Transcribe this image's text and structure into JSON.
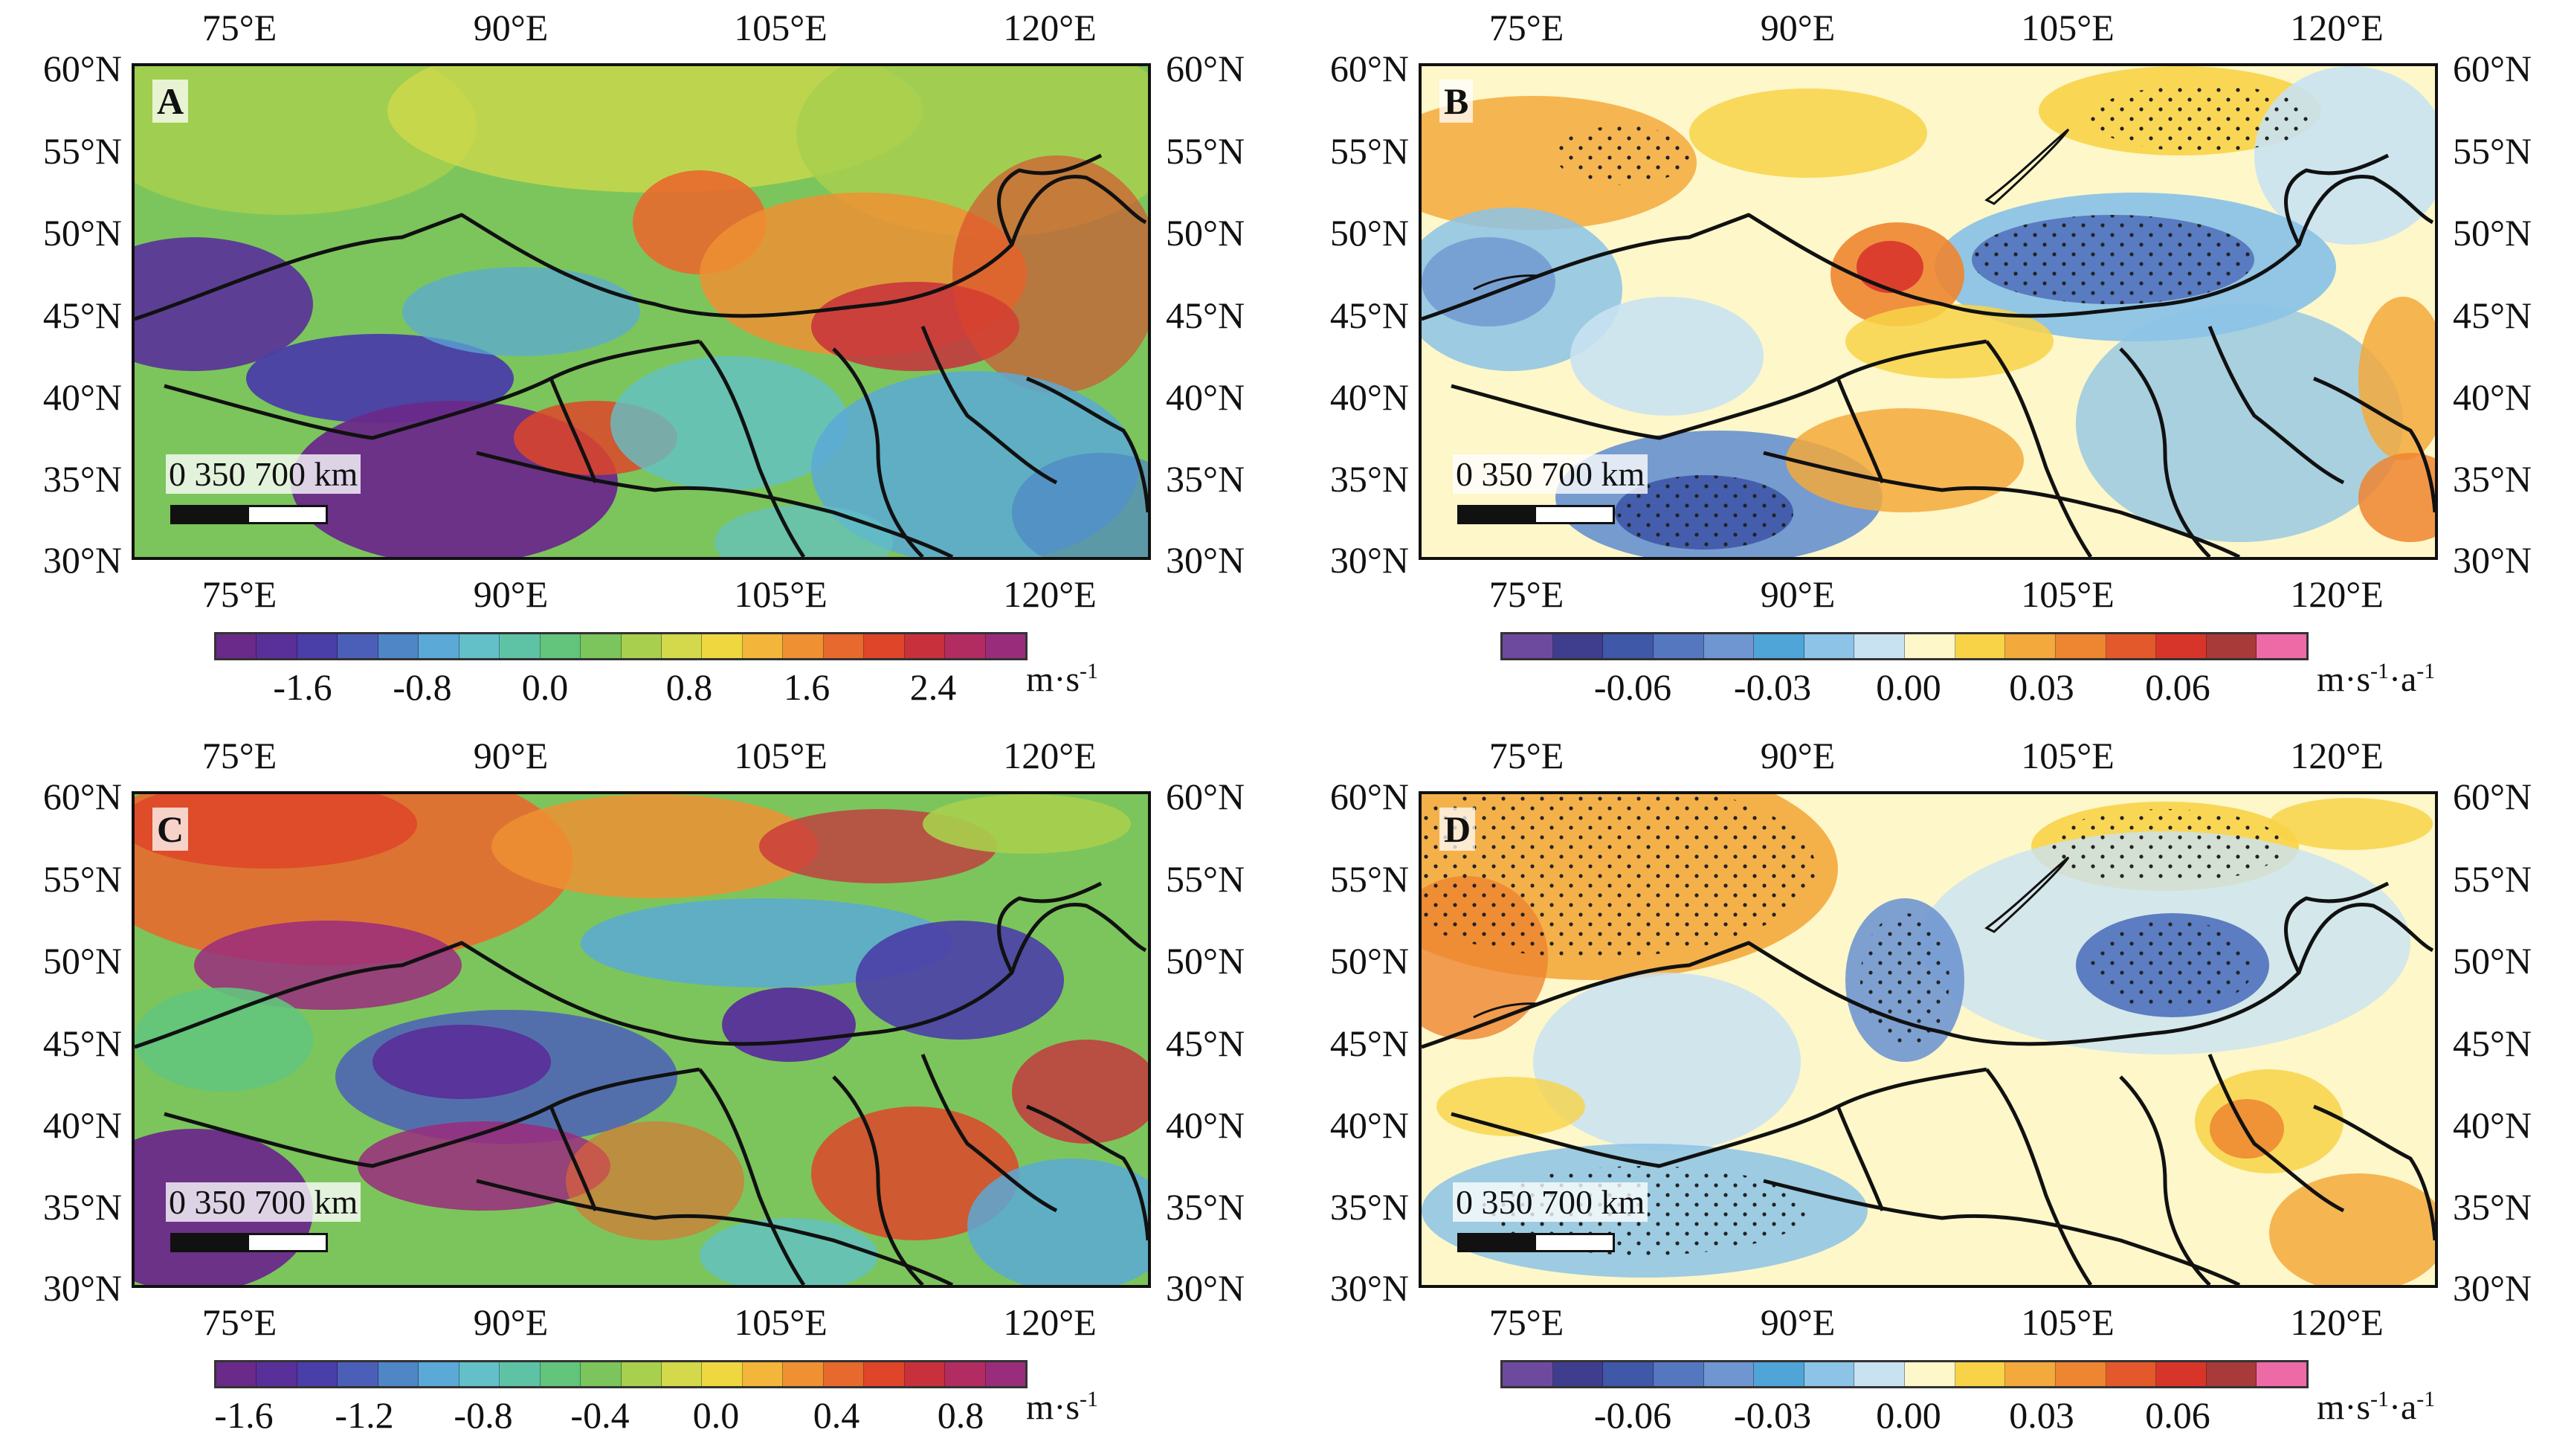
{
  "panels": [
    {
      "letter": "A",
      "scale_label": "0  350    700 km"
    },
    {
      "letter": "B",
      "scale_label": "0  350    700 km"
    },
    {
      "letter": "C",
      "scale_label": "0  350    700 km"
    },
    {
      "letter": "D",
      "scale_label": "0  350    700 km"
    }
  ],
  "axes": {
    "lon_ticks": [
      "75°E",
      "90°E",
      "105°E",
      "120°E"
    ],
    "lat_ticks": [
      "60°N",
      "55°N",
      "50°N",
      "45°N",
      "40°N",
      "35°N",
      "30°N"
    ]
  },
  "colorbars": {
    "A": {
      "ticks": [
        "-1.6",
        "-0.8",
        "0.0",
        "0.8",
        "1.6",
        "2.4"
      ],
      "unit": "m·s",
      "unit_sup": "-1",
      "unit2": "",
      "unit2_sup": "",
      "colors": [
        "#6a2a8a",
        "#59309a",
        "#4a3ea8",
        "#4c5fb8",
        "#4f86c6",
        "#5ba9d6",
        "#63c0c8",
        "#5ec3a5",
        "#63c47c",
        "#7cc55c",
        "#a8cf4d",
        "#d3d94a",
        "#efd740",
        "#f3b53a",
        "#ef9033",
        "#e8692d",
        "#de4529",
        "#c8303c",
        "#b22c62",
        "#9a2c7c"
      ]
    },
    "B": {
      "ticks": [
        "-0.06",
        "-0.03",
        "0.00",
        "0.03",
        "0.06"
      ],
      "unit": "m·s",
      "unit_sup": "-1",
      "unit2": "·a",
      "unit2_sup": "-1",
      "colors": [
        "#6e4a9e",
        "#3f3e8e",
        "#3f58a8",
        "#5577bf",
        "#6f96d0",
        "#4fa5d8",
        "#8cc3e6",
        "#c9e2f2",
        "#fdf7c9",
        "#f8d348",
        "#f3a93c",
        "#ee8530",
        "#e4592c",
        "#d8352a",
        "#a83a3a",
        "#ee6aa6"
      ]
    },
    "C": {
      "ticks": [
        "-1.6",
        "-1.2",
        "-0.8",
        "-0.4",
        "0.0",
        "0.4",
        "0.8"
      ],
      "unit": "m·s",
      "unit_sup": "-1",
      "unit2": "",
      "unit2_sup": "",
      "colors": [
        "#6a2a8a",
        "#59309a",
        "#4a3ea8",
        "#4c5fb8",
        "#4f86c6",
        "#5ba9d6",
        "#63c0c8",
        "#5ec3a5",
        "#63c47c",
        "#7cc55c",
        "#a8cf4d",
        "#d3d94a",
        "#efd740",
        "#f3b53a",
        "#ef9033",
        "#e8692d",
        "#de4529",
        "#c8303c",
        "#b22c62",
        "#9a2c7c"
      ]
    },
    "D": {
      "ticks": [
        "-0.06",
        "-0.03",
        "0.00",
        "0.03",
        "0.06"
      ],
      "unit": "m·s",
      "unit_sup": "-1",
      "unit2": "·a",
      "unit2_sup": "-1",
      "colors": [
        "#6e4a9e",
        "#3f3e8e",
        "#3f58a8",
        "#5577bf",
        "#6f96d0",
        "#4fa5d8",
        "#8cc3e6",
        "#c9e2f2",
        "#fdf7c9",
        "#f8d348",
        "#f3a93c",
        "#ee8530",
        "#e4592c",
        "#d8352a",
        "#a83a3a",
        "#ee6aa6"
      ]
    }
  },
  "map_extent": {
    "lon": [
      70,
      126
    ],
    "lat": [
      30,
      60
    ]
  }
}
